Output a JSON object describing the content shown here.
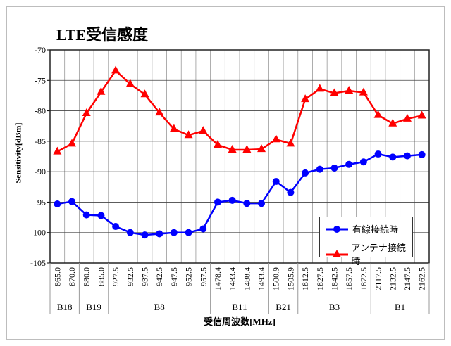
{
  "chart_data": {
    "type": "line",
    "title": "LTE受信感度",
    "xlabel": "受信周波数[MHz]",
    "ylabel": "Sensitivity[dBm]",
    "ylim": [
      -105,
      -70
    ],
    "yticks": [
      -70,
      -75,
      -80,
      -85,
      -90,
      -95,
      -100,
      -105
    ],
    "grid": true,
    "legend_position": "bottom-right",
    "categories": [
      "865.0",
      "870.0",
      "880.0",
      "885.0",
      "927.5",
      "932.5",
      "937.5",
      "942.5",
      "947.5",
      "952.5",
      "957.5",
      "1478.4",
      "1483.4",
      "1488.4",
      "1493.4",
      "1500.9",
      "1505.9",
      "1812.5",
      "1827.5",
      "1842.5",
      "1857.5",
      "1872.5",
      "2117.5",
      "2132.5",
      "2147.5",
      "2162.5"
    ],
    "bands": [
      {
        "label": "B18",
        "count": 2
      },
      {
        "label": "B19",
        "count": 2
      },
      {
        "label": "B8",
        "count": 7
      },
      {
        "label": "B11",
        "count": 4
      },
      {
        "label": "B21",
        "count": 2
      },
      {
        "label": "B3",
        "count": 5
      },
      {
        "label": "B1",
        "count": 4
      }
    ],
    "series": [
      {
        "name": "有線接続時",
        "color": "#0000ff",
        "marker": "circle",
        "values": [
          -95.3,
          -94.9,
          -97.1,
          -97.2,
          -99.0,
          -100.0,
          -100.4,
          -100.2,
          -100.0,
          -100.0,
          -99.4,
          -95.0,
          -94.7,
          -95.2,
          -95.2,
          -91.6,
          -93.4,
          -90.2,
          -89.6,
          -89.4,
          -88.8,
          -88.4,
          -87.1,
          -87.6,
          -87.4,
          -87.2
        ]
      },
      {
        "name": "アンテナ接続時",
        "color": "#ff0000",
        "marker": "triangle",
        "values": [
          -86.7,
          -85.4,
          -80.4,
          -76.9,
          -73.4,
          -75.6,
          -77.3,
          -80.3,
          -83.0,
          -84.0,
          -83.3,
          -85.6,
          -86.4,
          -86.4,
          -86.3,
          -84.7,
          -85.4,
          -78.1,
          -76.4,
          -77.1,
          -76.7,
          -77.0,
          -80.7,
          -82.1,
          -81.3,
          -80.8
        ]
      }
    ]
  }
}
